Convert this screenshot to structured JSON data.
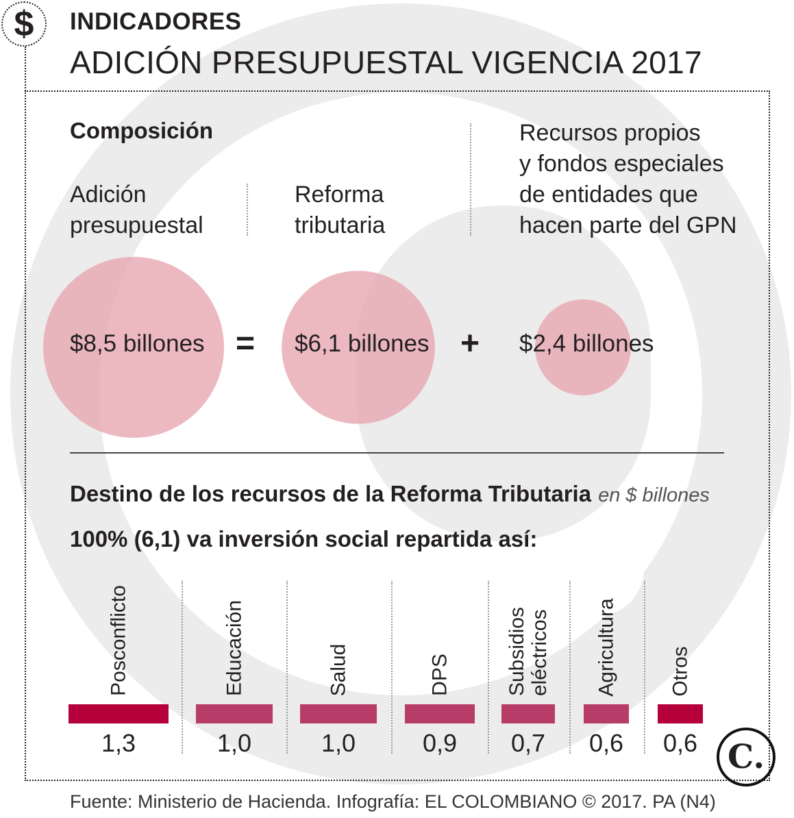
{
  "header": {
    "icon": "dollar-icon",
    "kicker": "INDICADORES",
    "headline": "ADICIÓN PRESUPUESTAL VIGENCIA 2017"
  },
  "composition": {
    "title": "Composición",
    "items": [
      {
        "label": "Adición\npresupuestal",
        "value": "$8,5 billones",
        "amount": 8.5
      },
      {
        "label": "Reforma\ntributaria",
        "value": "$6,1 billones",
        "amount": 6.1
      },
      {
        "label": "Recursos propios\ny fondos especiales\nde entidades que\nhacen parte del GPN",
        "value": "$2,4 billones",
        "amount": 2.4
      }
    ],
    "operators": [
      "=",
      "+"
    ]
  },
  "destination": {
    "title": "Destino de los recursos de la Reforma Tributaria",
    "unit": "en $ billones",
    "subtitle": "100% (6,1) va inversión social repartida así:"
  },
  "chart_data": {
    "type": "bar",
    "categories": [
      "Posconflicto",
      "Educación",
      "Salud",
      "DPS",
      "Subsidios\neléctricos",
      "Agricultura",
      "Otros"
    ],
    "values": [
      1.3,
      1.0,
      1.0,
      0.9,
      0.7,
      0.6,
      0.6
    ],
    "value_labels": [
      "1,3",
      "1,0",
      "1,0",
      "0,9",
      "0,7",
      "0,6",
      "0,6"
    ],
    "colors": [
      "#b5003c",
      "#b83c68",
      "#b83c68",
      "#b83c68",
      "#b83c68",
      "#b83c68",
      "#b5003c"
    ],
    "orientation": "horizontal bars, one per column"
  },
  "footer": {
    "source": "Fuente: Ministerio de Hacienda. Infografía: EL COLOMBIANO © 2017. PA (N4)",
    "logo": "El Colombiano C logo"
  },
  "colors": {
    "circle": "#e8a7b1",
    "bar_primary": "#b5003c",
    "bar_secondary": "#b83c68",
    "watermark": "#ececec"
  }
}
